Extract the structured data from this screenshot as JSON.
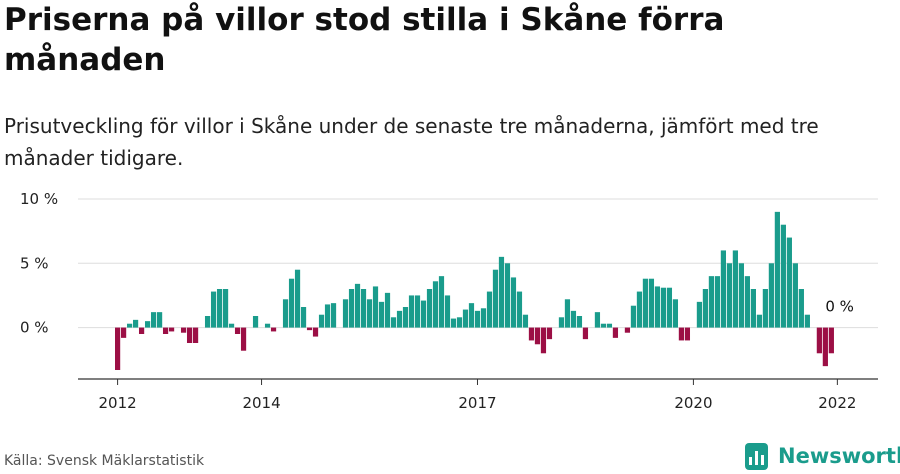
{
  "title": "Priserna på villor stod stilla i Skåne förra månaden",
  "subtitle": "Prisutveckling för villor i Skåne under de senaste tre månaderna, jämfört med tre månader tidigare.",
  "source": "Källa: Svensk Mäklarstatistik",
  "logo": {
    "text": "Newsworthy",
    "color": "#1a9c8c",
    "icon": "bar-chart-icon"
  },
  "colors": {
    "positive": "#1a9c8c",
    "negative": "#9c0f45",
    "grid": "#dddddd",
    "axis": "#333333"
  },
  "chart_data": {
    "type": "bar",
    "unit": "%",
    "x_start": "2012-01",
    "ylim": [
      -4,
      10
    ],
    "yticks": [
      {
        "value": 0,
        "label": "0 %"
      },
      {
        "value": 5,
        "label": "5 %"
      },
      {
        "value": 10,
        "label": "10 %"
      }
    ],
    "xticks": [
      "2012",
      "2014",
      "2017",
      "2020",
      "2022"
    ],
    "annotation": {
      "label": "0 %",
      "value": 0
    },
    "grid": true,
    "values": [
      -3.3,
      -0.8,
      0.3,
      0.6,
      -0.5,
      0.5,
      1.2,
      1.2,
      -0.5,
      -0.3,
      0.0,
      -0.4,
      -1.2,
      -1.2,
      0.0,
      0.9,
      2.8,
      3.0,
      3.0,
      0.3,
      -0.5,
      -1.8,
      0.0,
      0.9,
      0.0,
      0.3,
      -0.3,
      0.0,
      2.2,
      3.8,
      4.5,
      1.6,
      -0.2,
      -0.7,
      1.0,
      1.8,
      1.9,
      0.0,
      2.2,
      3.0,
      3.4,
      3.0,
      2.2,
      3.2,
      2.0,
      2.7,
      0.8,
      1.3,
      1.6,
      2.5,
      2.5,
      2.1,
      3.0,
      3.6,
      4.0,
      2.5,
      0.7,
      0.8,
      1.4,
      1.9,
      1.3,
      1.5,
      2.8,
      4.5,
      5.5,
      5.0,
      3.9,
      2.8,
      1.0,
      -1.0,
      -1.3,
      -2.0,
      -0.9,
      0.0,
      0.8,
      2.2,
      1.3,
      0.9,
      -0.9,
      0.0,
      1.2,
      0.3,
      0.3,
      -0.8,
      0.0,
      -0.4,
      1.7,
      2.8,
      3.8,
      3.8,
      3.2,
      3.1,
      3.1,
      2.2,
      -1.0,
      -1.0,
      0.0,
      2.0,
      3.0,
      4.0,
      4.0,
      6.0,
      5.0,
      6.0,
      5.0,
      4.0,
      3.0,
      1.0,
      3.0,
      5.0,
      9.0,
      8.0,
      7.0,
      5.0,
      3.0,
      1.0,
      0.0,
      -2.0,
      -3.0,
      -2.0,
      0.0
    ]
  }
}
